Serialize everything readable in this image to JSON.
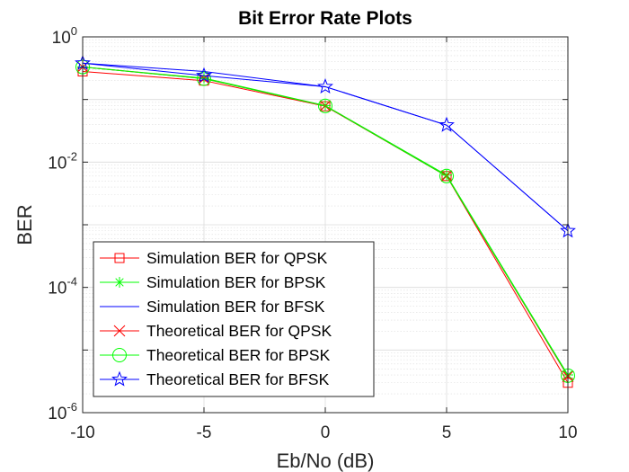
{
  "chart_data": {
    "type": "line",
    "title": "Bit Error Rate Plots",
    "xlabel": "Eb/No (dB)",
    "ylabel": "BER",
    "x": [
      -10,
      -5,
      0,
      5,
      10
    ],
    "xlim": [
      -10,
      10
    ],
    "ylim": [
      1e-06,
      1
    ],
    "yscale": "log",
    "grid": true,
    "minor_grid": true,
    "legend_location": "bottom-left",
    "x_ticks": [
      {
        "value": -10,
        "label": "-10"
      },
      {
        "value": -5,
        "label": "-5"
      },
      {
        "value": 0,
        "label": "0"
      },
      {
        "value": 5,
        "label": "5"
      },
      {
        "value": 10,
        "label": "10"
      }
    ],
    "y_ticks": [
      {
        "value": 1,
        "base": "10",
        "exp": "0"
      },
      {
        "value": 0.01,
        "base": "10",
        "exp": "-2"
      },
      {
        "value": 0.0001,
        "base": "10",
        "exp": "-4"
      },
      {
        "value": 1e-06,
        "base": "10",
        "exp": "-6"
      }
    ],
    "series": [
      {
        "name": "Simulation BER for QPSK",
        "color": "#ff0000",
        "marker": "square",
        "values": [
          0.28,
          0.2,
          0.078,
          0.006,
          3e-06
        ]
      },
      {
        "name": "Simulation BER for BPSK",
        "color": "#00ff00",
        "marker": "asterisk",
        "values": [
          0.33,
          0.22,
          0.08,
          0.0062,
          4e-06
        ]
      },
      {
        "name": "Simulation BER for BFSK",
        "color": "#0000ff",
        "marker": "none",
        "values": [
          0.38,
          0.28,
          0.16,
          0.039,
          0.0008
        ]
      },
      {
        "name": "Theoretical BER for QPSK",
        "color": "#ff0000",
        "marker": "x",
        "values": [
          0.33,
          0.215,
          0.079,
          0.006,
          3.8e-06
        ]
      },
      {
        "name": "Theoretical BER for BPSK",
        "color": "#00ff00",
        "marker": "circle",
        "values": [
          0.33,
          0.215,
          0.079,
          0.006,
          3.9e-06
        ]
      },
      {
        "name": "Theoretical BER for BFSK",
        "color": "#0000ff",
        "marker": "star",
        "values": [
          0.38,
          0.24,
          0.16,
          0.039,
          0.0008
        ]
      }
    ]
  }
}
